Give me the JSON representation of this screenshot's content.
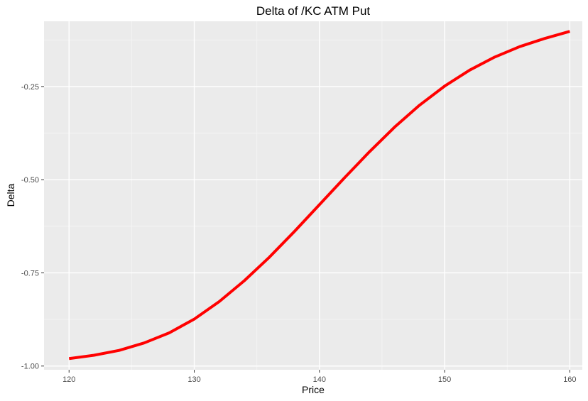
{
  "chart_data": {
    "type": "line",
    "title": "Delta of /KC ATM Put",
    "xlabel": "Price",
    "ylabel": "Delta",
    "xlim": [
      118,
      161
    ],
    "ylim": [
      -1.01,
      -0.075
    ],
    "x_ticks": [
      120,
      130,
      140,
      150,
      160
    ],
    "x_tick_labels": [
      "120",
      "130",
      "140",
      "150",
      "160"
    ],
    "y_ticks": [
      -1.0,
      -0.75,
      -0.5,
      -0.25
    ],
    "y_tick_labels": [
      "-1.00",
      "-0.75",
      "-0.50",
      "-0.25"
    ],
    "grid": true,
    "legend": "none",
    "series": [
      {
        "color": "#ff0000",
        "x": [
          120,
          122,
          124,
          126,
          128,
          130,
          132,
          134,
          136,
          138,
          140,
          142,
          144,
          146,
          148,
          150,
          152,
          154,
          156,
          158,
          160
        ],
        "y": [
          -0.98,
          -0.971,
          -0.958,
          -0.938,
          -0.911,
          -0.874,
          -0.827,
          -0.771,
          -0.708,
          -0.639,
          -0.567,
          -0.495,
          -0.425,
          -0.359,
          -0.3,
          -0.249,
          -0.206,
          -0.171,
          -0.143,
          -0.121,
          -0.102
        ]
      }
    ]
  },
  "colors": {
    "panel_background": "#ebebeb",
    "grid_major": "#ffffff",
    "line": "#ff0000"
  }
}
